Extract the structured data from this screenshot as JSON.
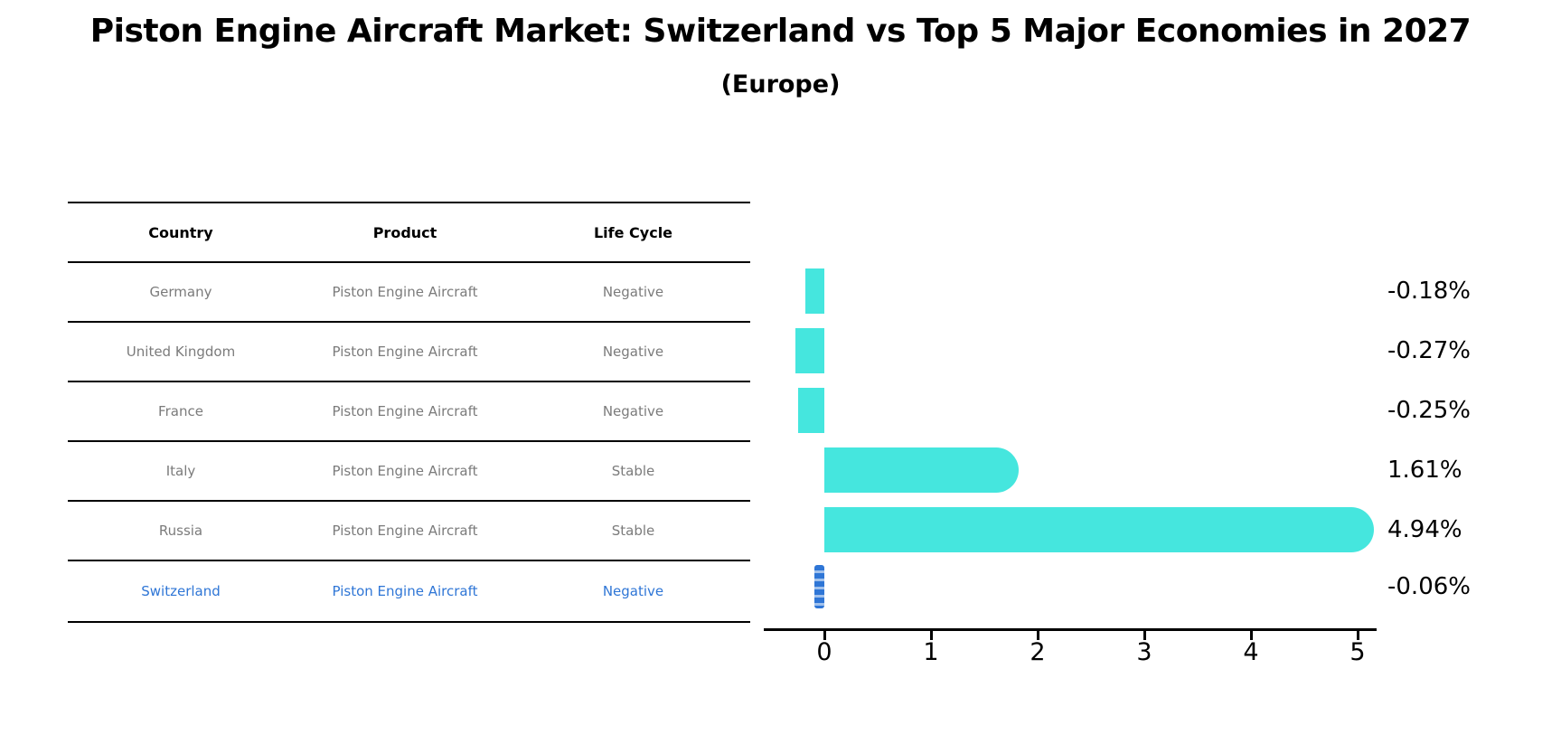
{
  "header": {
    "title": "Piston Engine Aircraft Market: Switzerland vs Top 5 Major Economies in 2027",
    "subtitle": "(Europe)"
  },
  "table": {
    "headers": [
      "Country",
      "Product",
      "Life Cycle"
    ],
    "rows": [
      {
        "country": "Germany",
        "product": "Piston Engine Aircraft",
        "life_cycle": "Negative",
        "highlight": false
      },
      {
        "country": "United Kingdom",
        "product": "Piston Engine Aircraft",
        "life_cycle": "Negative",
        "highlight": false
      },
      {
        "country": "France",
        "product": "Piston Engine Aircraft",
        "life_cycle": "Negative",
        "highlight": false
      },
      {
        "country": "Italy",
        "product": "Piston Engine Aircraft",
        "life_cycle": "Stable",
        "highlight": false
      },
      {
        "country": "Russia",
        "product": "Piston Engine Aircraft",
        "life_cycle": "Stable",
        "highlight": false
      },
      {
        "country": "Switzerland",
        "product": "Piston Engine Aircraft",
        "life_cycle": "Negative",
        "highlight": true
      }
    ]
  },
  "chart_data": {
    "type": "bar",
    "orientation": "horizontal",
    "title": "Piston Engine Aircraft Market: Switzerland vs Top 5 Major Economies in 2027 (Europe)",
    "categories": [
      "Germany",
      "United Kingdom",
      "France",
      "Italy",
      "Russia",
      "Switzerland"
    ],
    "values": [
      -0.18,
      -0.27,
      -0.25,
      1.61,
      4.94,
      -0.06
    ],
    "value_labels": [
      "-0.18%",
      "-0.27%",
      "-0.25%",
      "1.61%",
      "4.94%",
      "-0.06%"
    ],
    "unit": "percent CAGR",
    "xticks": [
      "0",
      "1",
      "2",
      "3",
      "4",
      "5"
    ],
    "xlim": [
      -0.57,
      5.18
    ],
    "grid": false,
    "legend": "none",
    "xlabel": "",
    "ylabel": "",
    "bar_color": "#45E6DE",
    "highlight_color": "#2F76D6",
    "highlight_index": 5,
    "highlight_style": "dashed",
    "text_colors": {
      "table_header": "#000000",
      "table_cell": "#7b7b7b",
      "highlight_row": "#2F76D6",
      "labels": "#000000"
    }
  }
}
